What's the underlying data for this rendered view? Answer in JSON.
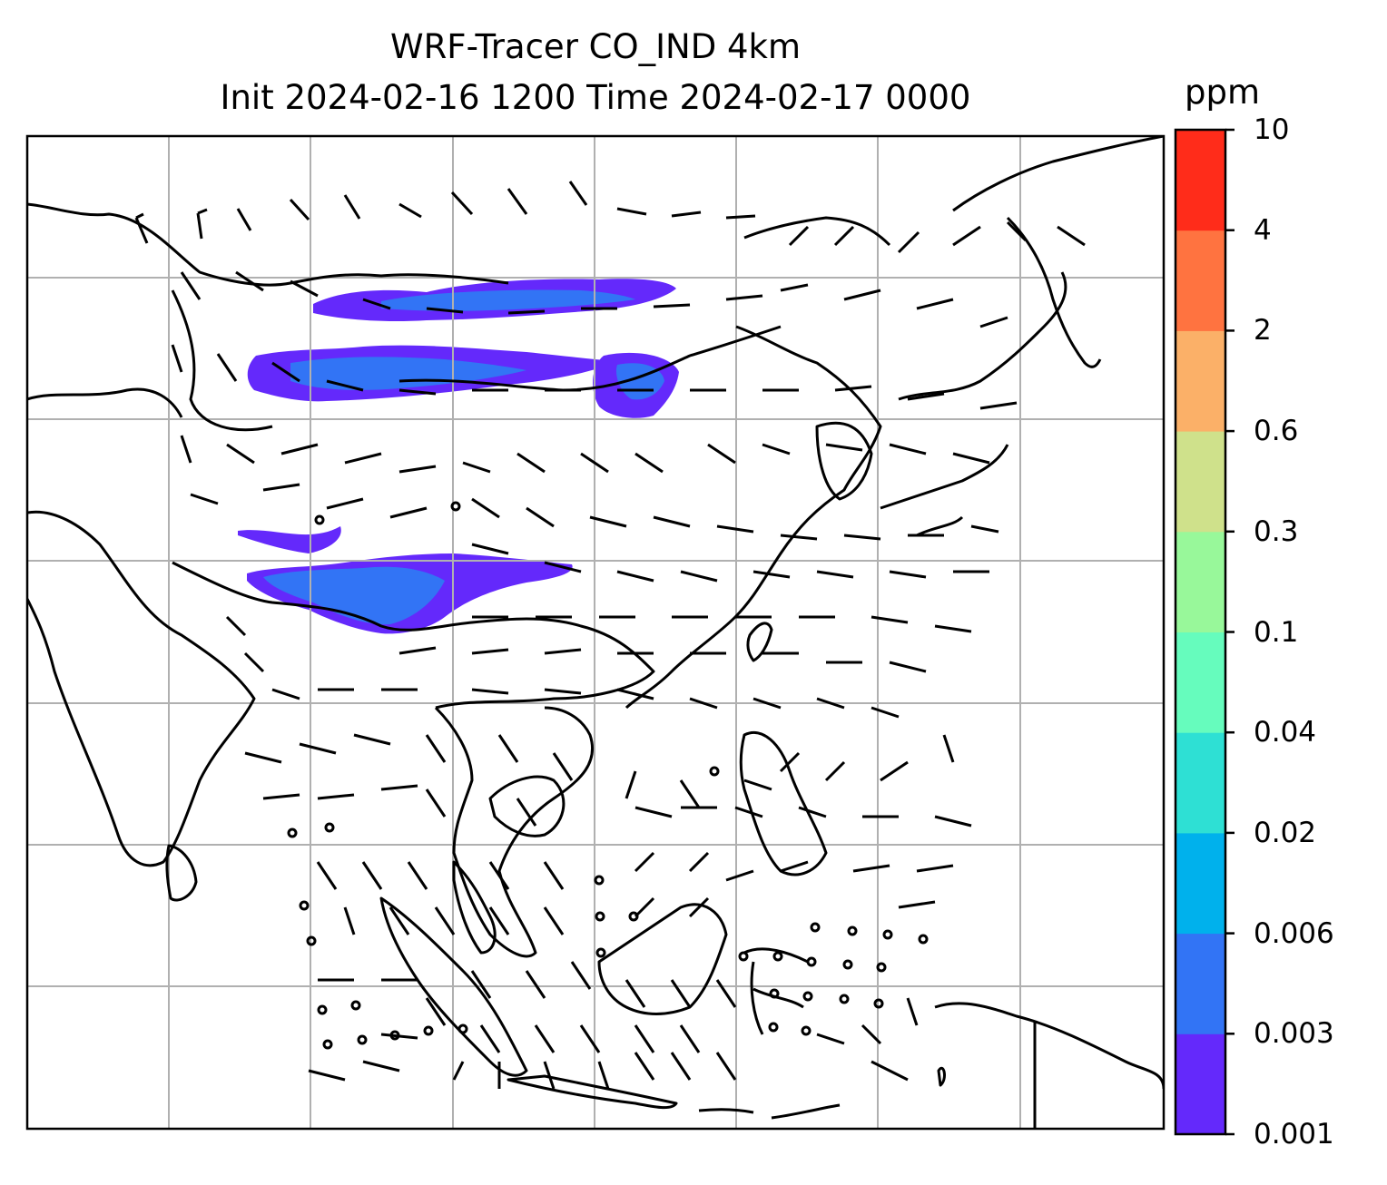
{
  "title": {
    "line1": "WRF-Tracer CO_IND 4km",
    "line2": "Init 2024-02-16 1200 Time 2024-02-17 0000"
  },
  "colorbar": {
    "unit": "ppm",
    "levels": [
      "0.001",
      "0.003",
      "0.006",
      "0.02",
      "0.04",
      "0.1",
      "0.3",
      "0.6",
      "2",
      "4",
      "10"
    ],
    "colors": [
      "#6429fb",
      "#3274f5",
      "#00b1ec",
      "#2ee0d4",
      "#66fcbd",
      "#98f89a",
      "#cfe18b",
      "#fbb068",
      "#ff7340",
      "#ff2c1a"
    ]
  },
  "map": {
    "gridlines": "on",
    "coastline_color": "#000000",
    "concentration_shown": "0.001-0.006 ppm"
  }
}
